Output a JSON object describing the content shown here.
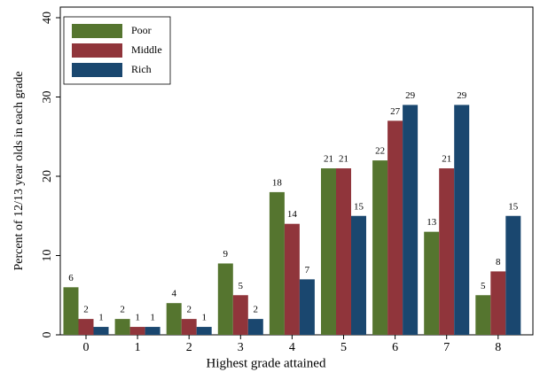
{
  "chart_data": {
    "type": "bar",
    "x_label": "Highest grade attained",
    "y_label": "Percent of 12/13 year olds in each grade",
    "categories": [
      "0",
      "1",
      "2",
      "3",
      "4",
      "5",
      "6",
      "7",
      "8"
    ],
    "series": [
      {
        "name": "Poor",
        "color": "#55752f",
        "values": [
          6,
          2,
          4,
          9,
          18,
          21,
          22,
          13,
          5
        ]
      },
      {
        "name": "Middle",
        "color": "#90353b",
        "values": [
          2,
          1,
          2,
          5,
          14,
          21,
          27,
          21,
          8
        ]
      },
      {
        "name": "Rich",
        "color": "#1a476f",
        "values": [
          1,
          1,
          1,
          2,
          7,
          15,
          29,
          29,
          15
        ]
      }
    ],
    "ylim": [
      0,
      40
    ],
    "yticks": [
      0,
      10,
      20,
      30,
      40
    ],
    "grid": false,
    "legend": "top-left"
  }
}
